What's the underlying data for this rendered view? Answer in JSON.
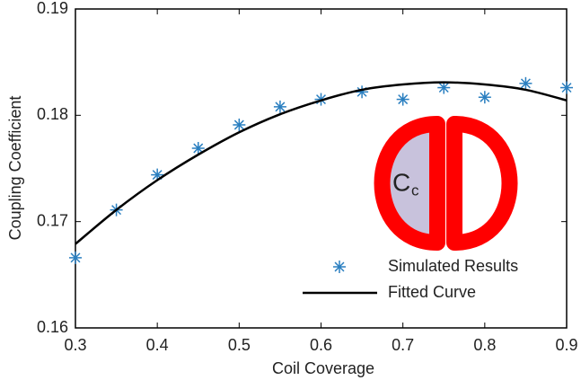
{
  "chart_data": {
    "type": "scatter",
    "xlabel": "Coil Coverage",
    "ylabel": "Coupling Coefficient",
    "xlim": [
      0.3,
      0.9
    ],
    "xticks": [
      0.3,
      0.4,
      0.5,
      0.6,
      0.7,
      0.8,
      0.9
    ],
    "ylim": [
      0.16,
      0.19
    ],
    "yticks": [
      0.16,
      0.17,
      0.18,
      0.19
    ],
    "grid": false,
    "legend": "lower right",
    "series": [
      {
        "name": "Simulated Results",
        "mode": "markers",
        "color": "#2a7fc0",
        "x": [
          0.3,
          0.35,
          0.4,
          0.45,
          0.5,
          0.55,
          0.6,
          0.65,
          0.7,
          0.75,
          0.8,
          0.85,
          0.9
        ],
        "values": [
          0.1666,
          0.1711,
          0.1744,
          0.1769,
          0.1791,
          0.1808,
          0.1815,
          0.1822,
          0.1815,
          0.1826,
          0.1817,
          0.183,
          0.1826
        ]
      },
      {
        "name": "Fitted Curve",
        "mode": "line",
        "color": "#000000",
        "x": [
          0.3,
          0.35,
          0.4,
          0.45,
          0.5,
          0.55,
          0.6,
          0.65,
          0.7,
          0.75,
          0.8,
          0.85,
          0.9
        ],
        "values": [
          0.1679,
          0.1711,
          0.1739,
          0.1763,
          0.1784,
          0.1801,
          0.1814,
          0.1824,
          0.1829,
          0.1831,
          0.1829,
          0.1824,
          0.1814
        ]
      }
    ],
    "inset_label": "C",
    "inset_subscript": "c"
  }
}
